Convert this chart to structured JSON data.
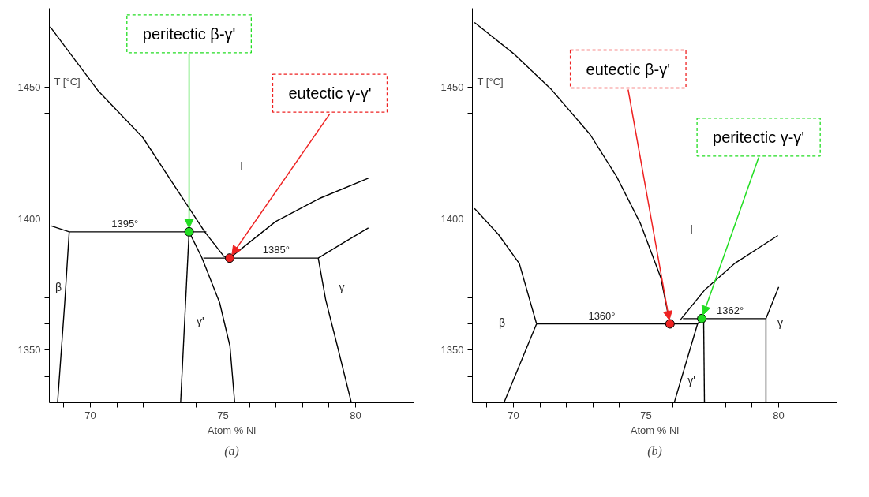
{
  "chart_data": [
    {
      "type": "line",
      "title": "(a)",
      "xlabel": "Atom % Ni",
      "ylabel": "T [°C]",
      "xlim": [
        68.45,
        82.2
      ],
      "ylim": [
        1330,
        1480
      ],
      "xticks": [
        {
          "value": 69,
          "label": null
        },
        70,
        {
          "value": 71,
          "label": null
        },
        {
          "value": 72,
          "label": null
        },
        {
          "value": 73,
          "label": null
        },
        {
          "value": 74,
          "label": null
        },
        75,
        {
          "value": 76,
          "label": null
        },
        {
          "value": 77,
          "label": null
        },
        {
          "value": 78,
          "label": null
        },
        {
          "value": 79,
          "label": null
        },
        80
      ],
      "yticks": [
        {
          "value": 1340,
          "label": null
        },
        1350,
        {
          "value": 1360,
          "label": null
        },
        {
          "value": 1370,
          "label": null
        },
        {
          "value": 1380,
          "label": null
        },
        {
          "value": 1390,
          "label": null
        },
        1400,
        {
          "value": 1410,
          "label": null
        },
        {
          "value": 1420,
          "label": null
        },
        {
          "value": 1430,
          "label": null
        },
        {
          "value": 1440,
          "label": null
        },
        1450
      ],
      "grid": false,
      "line_style": "solid",
      "series": [
        {
          "color": "#000000",
          "x": [
            68.48,
            70.31,
            71.98,
            73.2,
            74.31,
            75.03,
            75.25
          ],
          "values": [
            1473,
            1448.4,
            1430.8,
            1412,
            1395,
            1385.7,
            1385
          ]
        },
        {
          "color": "#000000",
          "x": [
            68.5,
            69.2,
            74.37
          ],
          "values": [
            1397.3,
            1395,
            1395
          ]
        },
        {
          "color": "#000000",
          "x": [
            69.2,
            69.03,
            68.76
          ],
          "values": [
            1395,
            1368,
            1330
          ]
        },
        {
          "color": "#000000",
          "x": [
            73.72,
            73.4
          ],
          "values": [
            1395,
            1330
          ]
        },
        {
          "color": "#000000",
          "x": [
            73.72,
            74.2,
            74.87,
            75.26,
            75.44
          ],
          "values": [
            1395,
            1385.2,
            1368.1,
            1351.6,
            1330
          ]
        },
        {
          "color": "#000000",
          "x": [
            74.26,
            78.59
          ],
          "values": [
            1385,
            1385
          ]
        },
        {
          "color": "#000000",
          "x": [
            75.25,
            76.98,
            78.64,
            80.48
          ],
          "values": [
            1385,
            1398.9,
            1407.7,
            1415.4
          ]
        },
        {
          "color": "#000000",
          "x": [
            78.59,
            79.42,
            80.48
          ],
          "values": [
            1385,
            1390.1,
            1396.5
          ]
        },
        {
          "color": "#000000",
          "x": [
            78.59,
            78.87,
            79.31,
            79.84
          ],
          "values": [
            1385,
            1369.2,
            1351.6,
            1330
          ]
        },
        {
          "type": "scatter",
          "x": [
            73.72,
            75.25
          ],
          "values": [
            1395,
            1385
          ],
          "colors": [
            "#22dd22",
            "#ee2222"
          ]
        }
      ],
      "annotations": [
        {
          "text": "peritectic β-γ'",
          "x": 73.72,
          "y": 1395
        },
        {
          "text": "eutectic γ-γ'",
          "x": 75.25,
          "y": 1385
        },
        "l",
        "β",
        "γ'",
        "γ",
        {
          "text": "1395°",
          "x": 71.3,
          "y": 1395
        },
        {
          "text": "1385°",
          "x": 77.0,
          "y": 1385
        }
      ]
    },
    {
      "type": "line",
      "title": "(b)",
      "xlabel": "Atom % Ni",
      "ylabel": "T [°C]",
      "xlim": [
        68.45,
        82.2
      ],
      "ylim": [
        1330,
        1480
      ],
      "xticks": [
        {
          "value": 69,
          "label": null
        },
        70,
        {
          "value": 71,
          "label": null
        },
        {
          "value": 72,
          "label": null
        },
        {
          "value": 73,
          "label": null
        },
        {
          "value": 74,
          "label": null
        },
        75,
        {
          "value": 76,
          "label": null
        },
        {
          "value": 77,
          "label": null
        },
        {
          "value": 78,
          "label": null
        },
        {
          "value": 79,
          "label": null
        },
        80
      ],
      "yticks": [
        {
          "value": 1340,
          "label": null
        },
        1350,
        {
          "value": 1360,
          "label": null
        },
        {
          "value": 1370,
          "label": null
        },
        {
          "value": 1380,
          "label": null
        },
        {
          "value": 1390,
          "label": null
        },
        1400,
        {
          "value": 1410,
          "label": null
        },
        {
          "value": 1420,
          "label": null
        },
        {
          "value": 1430,
          "label": null
        },
        {
          "value": 1440,
          "label": null
        },
        1450
      ],
      "grid": false,
      "line_style": "solid",
      "series": [
        {
          "color": "#000000",
          "x": [
            68.53,
            70.0,
            71.44,
            72.89,
            73.89,
            74.78,
            75.56,
            75.9
          ],
          "values": [
            1474.6,
            1462.8,
            1449,
            1432,
            1416,
            1398.3,
            1377.4,
            1360
          ]
        },
        {
          "color": "#000000",
          "x": [
            68.53,
            69.44,
            70.22,
            70.87
          ],
          "values": [
            1403.9,
            1393.9,
            1382.9,
            1360
          ]
        },
        {
          "color": "#000000",
          "x": [
            70.87,
            76.94
          ],
          "values": [
            1360,
            1360
          ]
        },
        {
          "color": "#000000",
          "x": [
            70.87,
            69.64
          ],
          "values": [
            1360,
            1330
          ]
        },
        {
          "color": "#000000",
          "x": [
            76.06,
            76.94,
            77.1
          ],
          "values": [
            1330,
            1360,
            1362
          ]
        },
        {
          "color": "#000000",
          "x": [
            76.39,
            79.52
          ],
          "values": [
            1362,
            1362
          ]
        },
        {
          "color": "#000000",
          "x": [
            77.17,
            77.2
          ],
          "values": [
            1362,
            1330
          ]
        },
        {
          "color": "#000000",
          "x": [
            80.0,
            79.52,
            79.52
          ],
          "values": [
            1374,
            1362,
            1330
          ]
        },
        {
          "color": "#000000",
          "x": [
            76.28,
            77.22,
            78.33,
            79.97
          ],
          "values": [
            1361.4,
            1373,
            1382.9,
            1393.6
          ]
        },
        {
          "type": "scatter",
          "x": [
            75.9,
            77.1
          ],
          "values": [
            1360,
            1362
          ],
          "colors": [
            "#ee2222",
            "#22dd22"
          ]
        }
      ],
      "annotations": [
        {
          "text": "eutectic β-γ'",
          "x": 75.9,
          "y": 1360
        },
        {
          "text": "peritectic γ-γ'",
          "x": 77.1,
          "y": 1362
        },
        "l",
        "β",
        "γ'",
        "γ",
        {
          "text": "1360°",
          "x": 73.33,
          "y": 1360
        },
        {
          "text": "1362°",
          "x": 78.17,
          "y": 1362
        }
      ]
    }
  ]
}
